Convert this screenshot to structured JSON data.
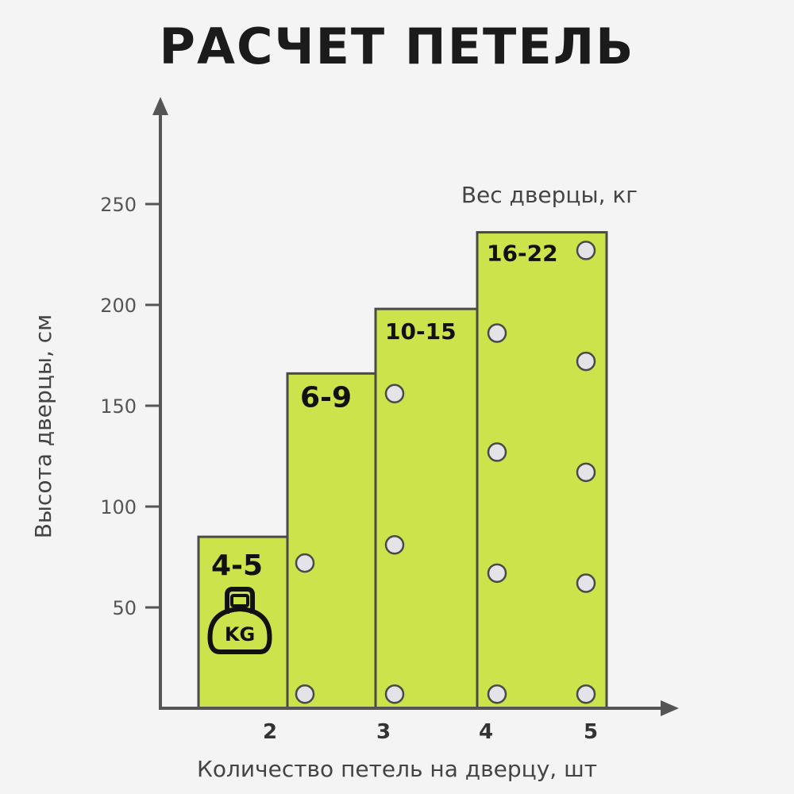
{
  "title": "РАСЧЕТ ПЕТЕЛЬ",
  "chart_data": {
    "type": "bar",
    "categories": [
      "2",
      "3",
      "4",
      "5"
    ],
    "values": [
      85,
      166,
      198,
      236
    ],
    "weight_labels": [
      "4-5",
      "6-9",
      "10-15",
      "16-22"
    ],
    "hinge_positions": [
      [
        7,
        72
      ],
      [
        7,
        81,
        156
      ],
      [
        7,
        67,
        127,
        186
      ],
      [
        7,
        62,
        117,
        172,
        227
      ]
    ],
    "xlabel": "Количество петель на дверцу, шт",
    "ylabel": "Высота дверцы, см",
    "weight_caption": "Вес дверцы, кг",
    "yticks": [
      50,
      100,
      150,
      200,
      250
    ],
    "ylim": [
      0,
      290
    ],
    "bar_color": "#cce34b",
    "edge_color": "#4a4a4a",
    "hinge_fill": "#e4e4e8",
    "icon": "kettlebell-kg-icon",
    "icon_text": "KG",
    "grid": false
  }
}
